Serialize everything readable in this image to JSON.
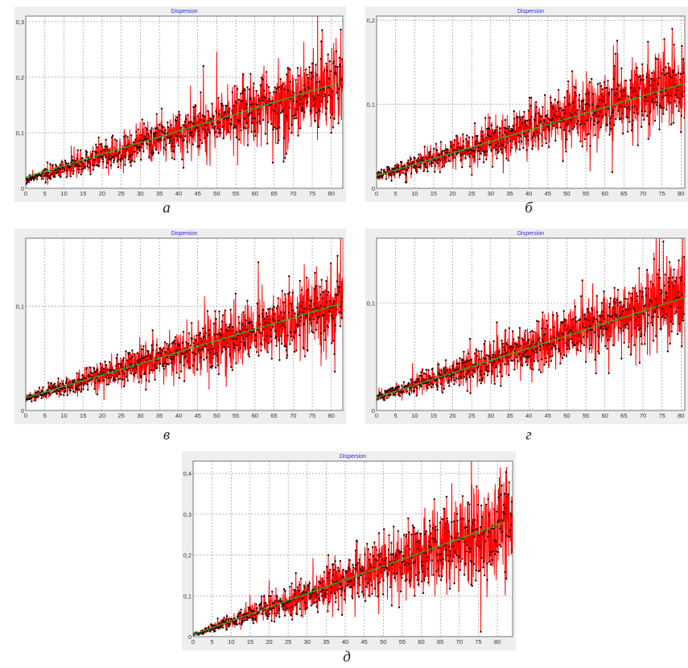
{
  "chart_data": [
    {
      "id": "a",
      "type": "scatter",
      "title": "Dispersion",
      "caption": "а",
      "x_ticks": [
        0,
        5,
        10,
        15,
        20,
        25,
        30,
        35,
        40,
        45,
        50,
        55,
        60,
        65,
        70,
        75,
        80
      ],
      "y_ticks": [
        0,
        0.1,
        0.2,
        0.3
      ],
      "y_tick_labels": [
        "0",
        "0,1",
        "0,2",
        "0,3"
      ],
      "xlim": [
        0,
        83
      ],
      "ylim": [
        0,
        0.31
      ],
      "grid": true,
      "series": [
        {
          "kind": "noisy-line-with-points",
          "color": "#ff0000",
          "marker_color": "#2a0000",
          "trend_start": 0.015,
          "trend_end": 0.19,
          "spread": 0.22
        },
        {
          "kind": "trend-line",
          "color": "#22bb22",
          "x": [
            0,
            82
          ],
          "y": [
            0.02,
            0.19
          ]
        }
      ]
    },
    {
      "id": "b",
      "type": "scatter",
      "title": "Dispersion",
      "caption": "б",
      "x_ticks": [
        0,
        5,
        10,
        15,
        20,
        25,
        30,
        35,
        40,
        45,
        50,
        55,
        60,
        65,
        70,
        75,
        80
      ],
      "y_ticks": [
        0,
        0.1,
        0.2
      ],
      "y_tick_labels": [
        "0",
        "0,1",
        "0,2"
      ],
      "xlim": [
        0,
        81
      ],
      "ylim": [
        0,
        0.205
      ],
      "grid": true,
      "series": [
        {
          "kind": "noisy-line-with-points",
          "color": "#ff0000",
          "marker_color": "#2a0000",
          "trend_start": 0.015,
          "trend_end": 0.125,
          "spread": 0.22
        },
        {
          "kind": "trend-line",
          "color": "#22bb22",
          "x": [
            0,
            81
          ],
          "y": [
            0.015,
            0.125
          ]
        }
      ]
    },
    {
      "id": "v",
      "type": "scatter",
      "title": "Dispersion",
      "caption": "в",
      "x_ticks": [
        0,
        5,
        10,
        15,
        20,
        25,
        30,
        35,
        40,
        45,
        50,
        55,
        60,
        65,
        70,
        75,
        80
      ],
      "y_ticks": [
        0,
        0.1
      ],
      "y_tick_labels": [
        "0",
        "0,1"
      ],
      "xlim": [
        0,
        83
      ],
      "ylim": [
        0,
        0.165
      ],
      "grid": true,
      "series": [
        {
          "kind": "noisy-line-with-points",
          "color": "#ff0000",
          "marker_color": "#2a0000",
          "trend_start": 0.012,
          "trend_end": 0.102,
          "spread": 0.2
        },
        {
          "kind": "trend-line",
          "color": "#22bb22",
          "x": [
            0,
            82
          ],
          "y": [
            0.012,
            0.102
          ]
        }
      ]
    },
    {
      "id": "g",
      "type": "scatter",
      "title": "Dispersion",
      "caption": "г",
      "x_ticks": [
        0,
        5,
        10,
        15,
        20,
        25,
        30,
        35,
        40,
        45,
        50,
        55,
        60,
        65,
        70,
        75,
        80
      ],
      "y_ticks": [
        0,
        0.1
      ],
      "y_tick_labels": [
        "0",
        "0,1"
      ],
      "xlim": [
        0,
        81
      ],
      "ylim": [
        0,
        0.16
      ],
      "grid": true,
      "series": [
        {
          "kind": "noisy-line-with-points",
          "color": "#ff0000",
          "marker_color": "#2a0000",
          "trend_start": 0.012,
          "trend_end": 0.105,
          "spread": 0.2
        },
        {
          "kind": "trend-line",
          "color": "#22bb22",
          "x": [
            0,
            81
          ],
          "y": [
            0.012,
            0.105
          ]
        }
      ]
    },
    {
      "id": "d",
      "type": "scatter",
      "title": "Dispersion",
      "caption": "д",
      "x_ticks": [
        0,
        5,
        10,
        15,
        20,
        25,
        30,
        35,
        40,
        45,
        50,
        55,
        60,
        65,
        70,
        75,
        80
      ],
      "y_ticks": [
        0,
        0.1,
        0.2,
        0.3,
        0.4
      ],
      "y_tick_labels": [
        "0",
        "0,1",
        "0,2",
        "0,3",
        "0,4"
      ],
      "xlim": [
        0,
        84
      ],
      "ylim": [
        0,
        0.43
      ],
      "grid": true,
      "series": [
        {
          "kind": "noisy-line-with-points",
          "color": "#ff0000",
          "marker_color": "#2a0000",
          "trend_start": 0.005,
          "trend_end": 0.28,
          "spread": 0.24
        },
        {
          "kind": "trend-line",
          "color": "#22bb22",
          "x": [
            0,
            82
          ],
          "y": [
            0.005,
            0.28
          ]
        }
      ]
    }
  ]
}
